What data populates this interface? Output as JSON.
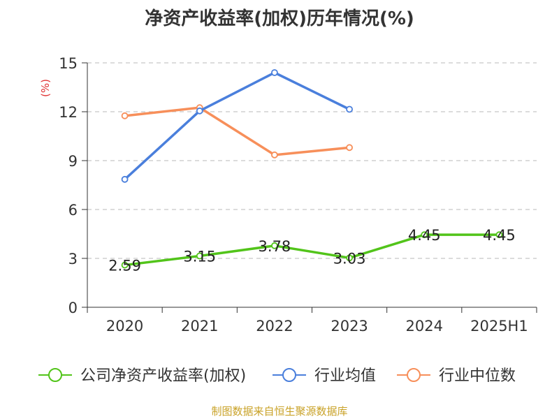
{
  "title": "净资产收益率(加权)历年情况(%)",
  "source": "制图数据来自恒生聚源数据库",
  "chart_data": {
    "type": "line",
    "title": "净资产收益率(加权)历年情况(%)",
    "ylabel": "(%)",
    "ylim": [
      0,
      15
    ],
    "yticks": [
      0,
      3,
      6,
      9,
      12,
      15
    ],
    "grid": true,
    "legend_position": "bottom",
    "categories": [
      "2020",
      "2021",
      "2022",
      "2023",
      "2024",
      "2025H1"
    ],
    "series": [
      {
        "name": "公司净资产收益率(加权)",
        "color": "#52c41a",
        "values": [
          2.59,
          3.15,
          3.78,
          3.03,
          4.45,
          4.45
        ],
        "labels": [
          "2.59",
          "3.15",
          "3.78",
          "3.03",
          "4.45",
          "4.45"
        ]
      },
      {
        "name": "行业均值",
        "color": "#4a7fdc",
        "values": [
          7.85,
          12.05,
          14.4,
          12.15,
          null,
          null
        ]
      },
      {
        "name": "行业中位数",
        "color": "#f78f5a",
        "values": [
          11.75,
          12.25,
          9.35,
          9.8,
          null,
          null
        ]
      }
    ]
  }
}
